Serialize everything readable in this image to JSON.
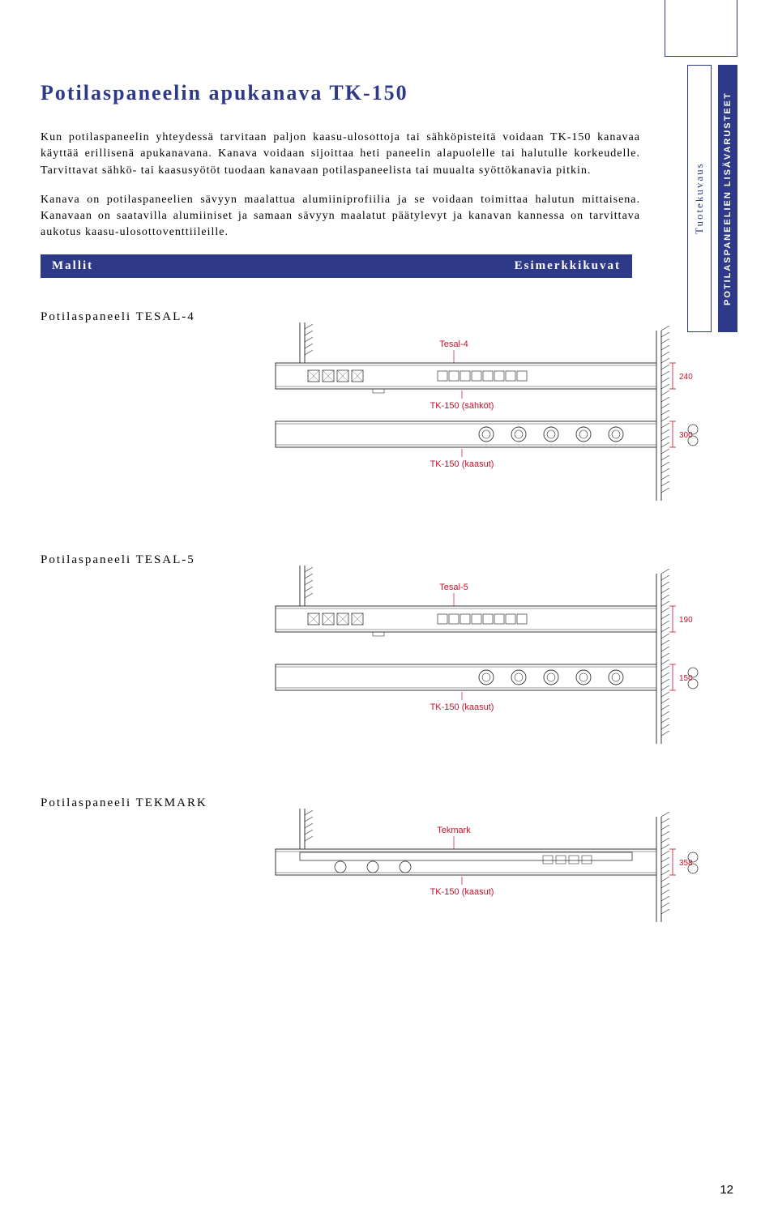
{
  "title": "Potilaspaneelin apukanava TK-150",
  "paragraphs": [
    "Kun potilaspaneelin yhteydessä tarvitaan paljon kaasu-ulosottoja tai sähköpisteitä voidaan TK-150 kanavaa käyttää erillisenä apukanavana. Kanava voidaan sijoittaa heti paneelin alapuolelle tai halutulle korkeudelle. Tarvittavat sähkö- tai kaasusyötöt tuodaan kanavaan potilaspaneelista tai muualta syöttökanavia pitkin.",
    "Kanava on potilaspaneelien sävyyn maalattua alumiiniprofiilia ja se voidaan toimittaa halutun mittaisena. Kanavaan on saatavilla alumiiniset ja samaan sävyyn maalatut päätylevyt ja kanavan kannessa on tarvittava aukotus kaasu-ulosottoventtiileille."
  ],
  "section_bar": {
    "left": "Mallit",
    "right": "Esimerkkikuvat"
  },
  "side_tabs": {
    "light": "Tuotekuvaus",
    "dark": "POTILASPANEELIEN LISÄVARUSTEET"
  },
  "models": [
    {
      "heading": "Potilaspaneeli TESAL-4",
      "top_label": "Tesal-4",
      "rows": [
        {
          "label_below": "TK-150 (sähköt)",
          "dim": "240",
          "socket_style": "electric"
        },
        {
          "label_below": "TK-150 (kaasut)",
          "dim": "300",
          "socket_style": "gas"
        }
      ]
    },
    {
      "heading": "Potilaspaneeli TESAL-5",
      "top_label": "Tesal-5",
      "rows": [
        {
          "label_below": "",
          "dim": "190",
          "socket_style": "electric"
        },
        {
          "label_below": "TK-150 (kaasut)",
          "dim": "150",
          "socket_style": "gas"
        }
      ]
    },
    {
      "heading": "Potilaspaneeli TEKMARK",
      "top_label": "Tekmark",
      "rows": [
        {
          "label_below": "TK-150 (kaasut)",
          "dim": "358",
          "socket_style": "tekmark"
        }
      ]
    }
  ],
  "page_number": "12",
  "colors": {
    "brand": "#2e3a87",
    "accent": "#c8102e",
    "line": "#333333"
  }
}
